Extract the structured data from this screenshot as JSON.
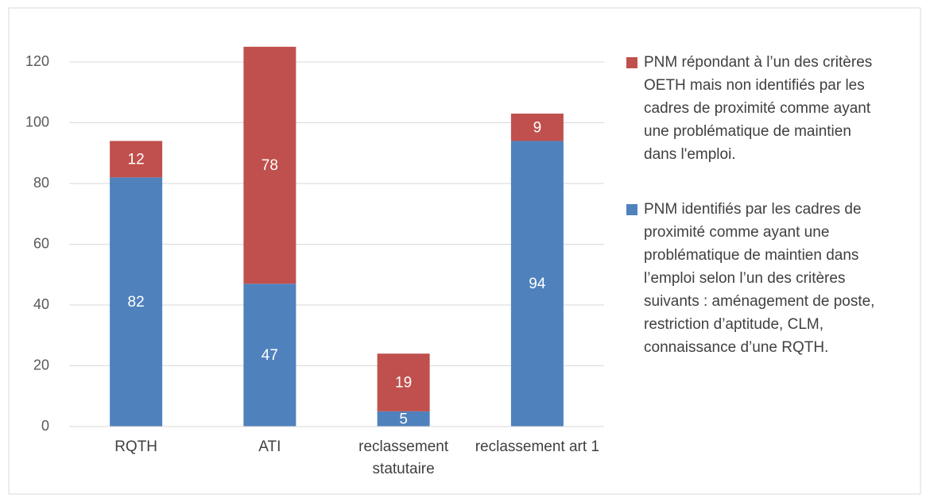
{
  "chart_data": {
    "type": "stacked_bar",
    "categories": [
      "RQTH",
      "ATI",
      "reclassement statutaire",
      "reclassement art 1"
    ],
    "series": [
      {
        "name": "PNM identifiés par les cadres de proximité comme ayant une problématique de maintien dans l’emploi selon l’un des critères suivants : aménagement de poste, restriction d’aptitude, CLM, connaissance d’une RQTH.",
        "color": "#4f81bd",
        "values": [
          82,
          47,
          5,
          94
        ]
      },
      {
        "name": "PNM répondant à l’un des critères OETH mais non identifiés par les cadres de proximité comme ayant une problématique de maintien dans l'emploi.",
        "color": "#c0504d",
        "values": [
          12,
          78,
          19,
          9
        ]
      }
    ],
    "ylim": [
      0,
      120
    ],
    "yticks": [
      0,
      20,
      40,
      60,
      80,
      100,
      120
    ],
    "grid": true,
    "legend": "right"
  }
}
